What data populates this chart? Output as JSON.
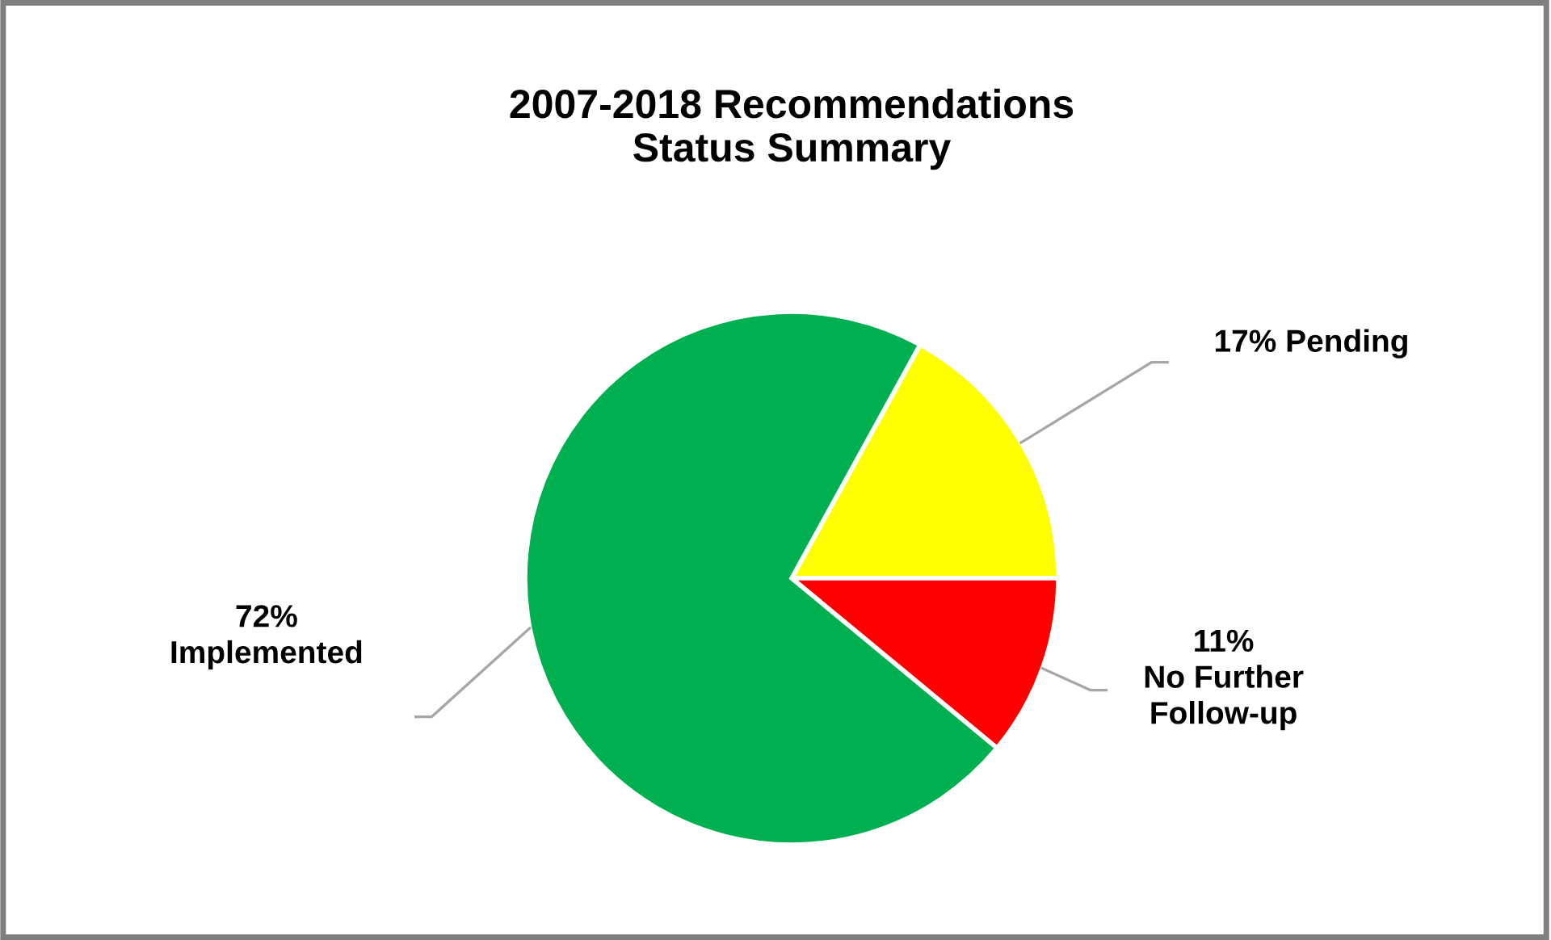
{
  "chart_data": {
    "type": "pie",
    "title": "2007-2018 Recommendations\nStatus Summary",
    "categories": [
      "Pending",
      "No Further\nFollow-up",
      "Implemented"
    ],
    "values": [
      17,
      11,
      72
    ],
    "colors": [
      "#ffff00",
      "#ff0000",
      "#00b050"
    ],
    "value_labels": [
      "17%",
      "11%",
      "72%"
    ],
    "legend": false
  }
}
